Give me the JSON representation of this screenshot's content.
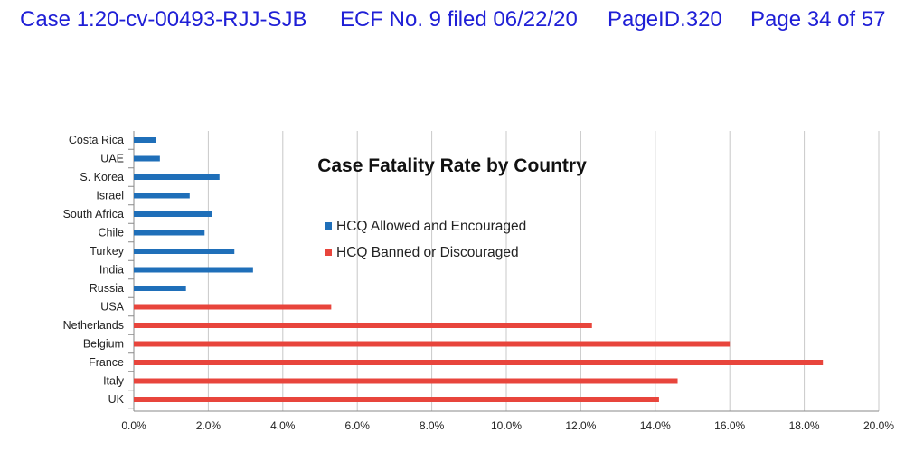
{
  "header": {
    "case": "Case 1:20-cv-00493-RJJ-SJB",
    "ecf": "ECF No. 9 filed 06/22/20",
    "pageid": "PageID.320",
    "page": "Page 34 of 57"
  },
  "chart_data": {
    "type": "bar",
    "orientation": "horizontal",
    "title": "Case Fatality Rate by Country",
    "xlabel": "",
    "ylabel": "",
    "xlim": [
      0,
      0.2
    ],
    "x_ticks": [
      "0.0%",
      "2.0%",
      "4.0%",
      "6.0%",
      "8.0%",
      "10.0%",
      "12.0%",
      "14.0%",
      "16.0%",
      "18.0%",
      "20.0%"
    ],
    "grid": "vertical",
    "legend_placement": "center",
    "categories": [
      "Costa Rica",
      "UAE",
      "S. Korea",
      "Israel",
      "South Africa",
      "Chile",
      "Turkey",
      "India",
      "Russia",
      "USA",
      "Netherlands",
      "Belgium",
      "France",
      "Italy",
      "UK"
    ],
    "series": [
      {
        "name": "HCQ Allowed and Encouraged",
        "color": "#1f6fb9",
        "values": [
          0.006,
          0.007,
          0.023,
          0.015,
          0.021,
          0.019,
          0.027,
          0.032,
          0.014,
          null,
          null,
          null,
          null,
          null,
          null
        ]
      },
      {
        "name": "HCQ Banned or Discouraged",
        "color": "#e8453c",
        "values": [
          null,
          null,
          null,
          null,
          null,
          null,
          null,
          null,
          null,
          0.053,
          0.123,
          0.16,
          0.185,
          0.146,
          0.141
        ]
      }
    ]
  }
}
